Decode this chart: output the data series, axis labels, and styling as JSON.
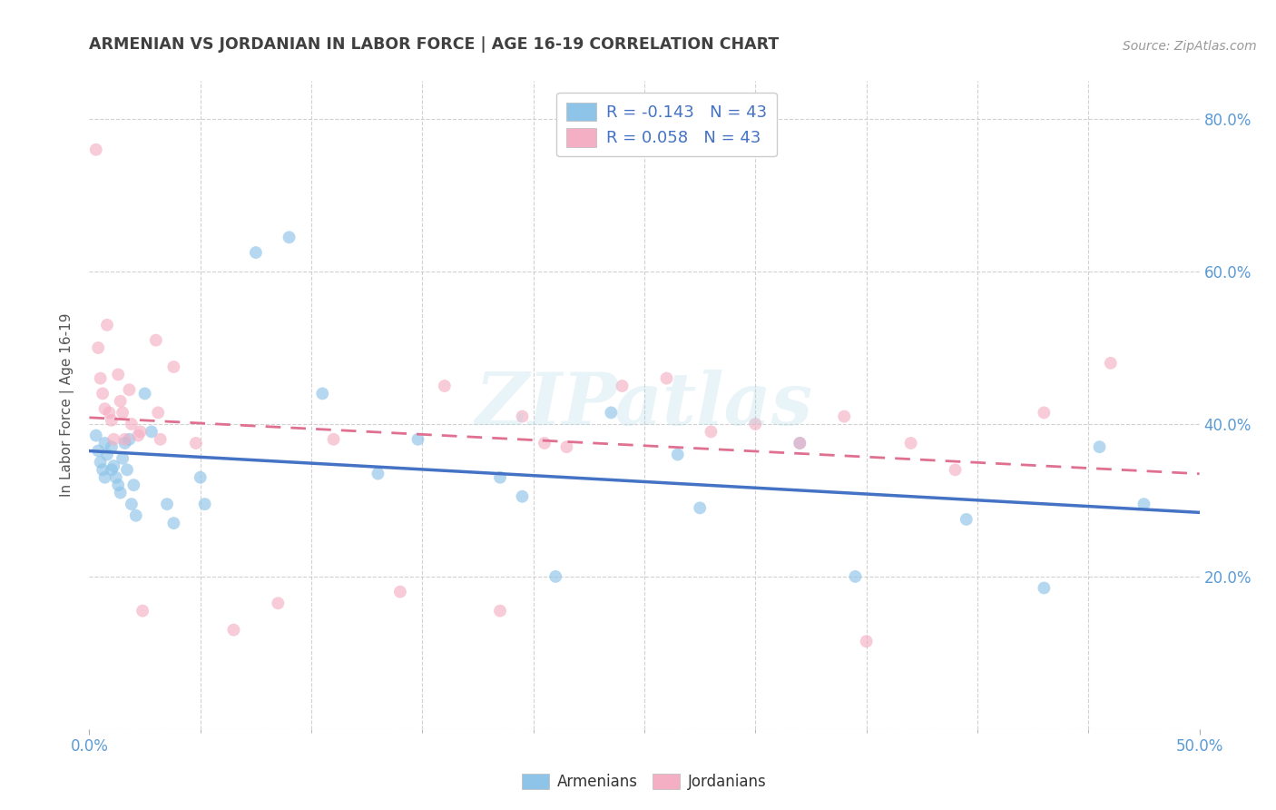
{
  "title": "ARMENIAN VS JORDANIAN IN LABOR FORCE | AGE 16-19 CORRELATION CHART",
  "source": "Source: ZipAtlas.com",
  "ylabel": "In Labor Force | Age 16-19",
  "xlim": [
    0.0,
    0.5
  ],
  "ylim": [
    0.0,
    0.85
  ],
  "xticks_major": [
    0.0,
    0.5
  ],
  "xticks_minor": [
    0.0,
    0.05,
    0.1,
    0.15,
    0.2,
    0.25,
    0.3,
    0.35,
    0.4,
    0.45,
    0.5
  ],
  "yticks": [
    0.0,
    0.2,
    0.4,
    0.6,
    0.8
  ],
  "xticklabels_major": [
    "0.0%",
    "50.0%"
  ],
  "yticklabels": [
    "",
    "20.0%",
    "40.0%",
    "60.0%",
    "80.0%"
  ],
  "armenians_x": [
    0.003,
    0.004,
    0.005,
    0.006,
    0.007,
    0.007,
    0.008,
    0.01,
    0.01,
    0.011,
    0.012,
    0.013,
    0.014,
    0.015,
    0.016,
    0.017,
    0.018,
    0.019,
    0.02,
    0.021,
    0.025,
    0.028,
    0.035,
    0.038,
    0.05,
    0.052,
    0.075,
    0.09,
    0.105,
    0.13,
    0.148,
    0.185,
    0.195,
    0.21,
    0.235,
    0.265,
    0.275,
    0.32,
    0.345,
    0.395,
    0.43,
    0.455,
    0.475
  ],
  "armenians_y": [
    0.385,
    0.365,
    0.35,
    0.34,
    0.33,
    0.375,
    0.36,
    0.37,
    0.34,
    0.345,
    0.33,
    0.32,
    0.31,
    0.355,
    0.375,
    0.34,
    0.38,
    0.295,
    0.32,
    0.28,
    0.44,
    0.39,
    0.295,
    0.27,
    0.33,
    0.295,
    0.625,
    0.645,
    0.44,
    0.335,
    0.38,
    0.33,
    0.305,
    0.2,
    0.415,
    0.36,
    0.29,
    0.375,
    0.2,
    0.275,
    0.185,
    0.37,
    0.295
  ],
  "jordanians_x": [
    0.003,
    0.004,
    0.005,
    0.006,
    0.007,
    0.008,
    0.009,
    0.01,
    0.011,
    0.013,
    0.014,
    0.015,
    0.016,
    0.018,
    0.019,
    0.022,
    0.023,
    0.024,
    0.03,
    0.031,
    0.032,
    0.038,
    0.048,
    0.065,
    0.085,
    0.11,
    0.14,
    0.16,
    0.185,
    0.195,
    0.205,
    0.215,
    0.24,
    0.26,
    0.28,
    0.3,
    0.32,
    0.34,
    0.35,
    0.37,
    0.39,
    0.43,
    0.46
  ],
  "jordanians_y": [
    0.76,
    0.5,
    0.46,
    0.44,
    0.42,
    0.53,
    0.415,
    0.405,
    0.38,
    0.465,
    0.43,
    0.415,
    0.38,
    0.445,
    0.4,
    0.385,
    0.39,
    0.155,
    0.51,
    0.415,
    0.38,
    0.475,
    0.375,
    0.13,
    0.165,
    0.38,
    0.18,
    0.45,
    0.155,
    0.41,
    0.375,
    0.37,
    0.45,
    0.46,
    0.39,
    0.4,
    0.375,
    0.41,
    0.115,
    0.375,
    0.34,
    0.415,
    0.48
  ],
  "armenians_color": "#8ec4e8",
  "jordanians_color": "#f5afc4",
  "armenians_line_color": "#4472c4",
  "jordanians_line_color": "#e07090",
  "R_armenians": -0.143,
  "N_armenians": 43,
  "R_jordanians": 0.058,
  "N_jordanians": 43,
  "marker_size": 100,
  "marker_alpha": 0.65,
  "watermark_text": "ZIPatlas",
  "background_color": "#ffffff",
  "grid_color": "#cccccc",
  "tick_label_color": "#5b9bd5",
  "legend_text_color": "#4472c4",
  "title_color": "#404040",
  "source_color": "#999999",
  "ylabel_color": "#555555"
}
